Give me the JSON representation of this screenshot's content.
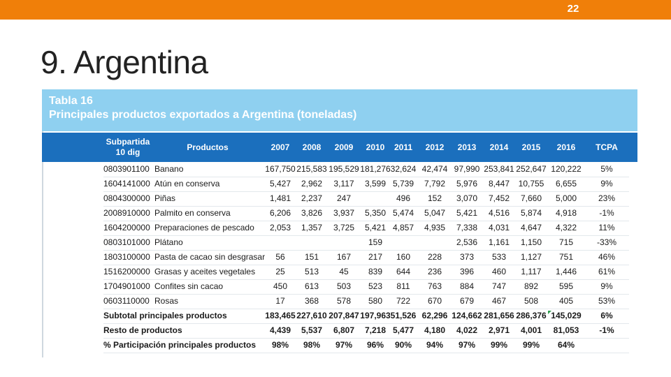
{
  "slide": {
    "page_number": "22",
    "title": "9. Argentina"
  },
  "table": {
    "label": "Tabla 16",
    "title": "Principales productos exportados a Argentina (toneladas)",
    "headers": {
      "subpartida_line1": "Subpartida",
      "subpartida_line2": "10 dig",
      "productos": "Productos",
      "years": [
        "2007",
        "2008",
        "2009",
        "2010",
        "2011",
        "2012",
        "2013",
        "2014",
        "2015",
        "2016"
      ],
      "tcpa": "TCPA"
    },
    "rows": [
      {
        "code": "0803901100",
        "product": "Banano",
        "values": [
          "167,750",
          "215,583",
          "195,529",
          "181,276",
          "32,624",
          "42,474",
          "97,990",
          "253,841",
          "252,647",
          "120,222"
        ],
        "tcpa": "5%"
      },
      {
        "code": "1604141000",
        "product": "Atún en conserva",
        "values": [
          "5,427",
          "2,962",
          "3,117",
          "3,599",
          "5,739",
          "7,792",
          "5,976",
          "8,447",
          "10,755",
          "6,655"
        ],
        "tcpa": "9%"
      },
      {
        "code": "0804300000",
        "product": "Piñas",
        "values": [
          "1,481",
          "2,237",
          "247",
          "",
          "496",
          "152",
          "3,070",
          "7,452",
          "7,660",
          "5,000"
        ],
        "tcpa": "23%"
      },
      {
        "code": "2008910000",
        "product": "Palmito en conserva",
        "values": [
          "6,206",
          "3,826",
          "3,937",
          "5,350",
          "5,474",
          "5,047",
          "5,421",
          "4,516",
          "5,874",
          "4,918"
        ],
        "tcpa": "-1%"
      },
      {
        "code": "1604200000",
        "product": "Preparaciones de pescado",
        "values": [
          "2,053",
          "1,357",
          "3,725",
          "5,421",
          "4,857",
          "4,935",
          "7,338",
          "4,031",
          "4,647",
          "4,322"
        ],
        "tcpa": "11%"
      },
      {
        "code": "0803101000",
        "product": "Plátano",
        "values": [
          "",
          "",
          "",
          "159",
          "",
          "",
          "2,536",
          "1,161",
          "1,150",
          "715"
        ],
        "tcpa": "-33%"
      },
      {
        "code": "1803100000",
        "product": "Pasta de cacao sin desgrasar",
        "values": [
          "56",
          "151",
          "167",
          "217",
          "160",
          "228",
          "373",
          "533",
          "1,127",
          "751"
        ],
        "tcpa": "46%"
      },
      {
        "code": "1516200000",
        "product": "Grasas y aceites vegetales",
        "values": [
          "25",
          "513",
          "45",
          "839",
          "644",
          "236",
          "396",
          "460",
          "1,117",
          "1,446"
        ],
        "tcpa": "61%"
      },
      {
        "code": "1704901000",
        "product": "Confites sin cacao",
        "values": [
          "450",
          "613",
          "503",
          "523",
          "811",
          "763",
          "884",
          "747",
          "892",
          "595"
        ],
        "tcpa": "9%"
      },
      {
        "code": "0603110000",
        "product": "Rosas",
        "values": [
          "17",
          "368",
          "578",
          "580",
          "722",
          "670",
          "679",
          "467",
          "508",
          "405"
        ],
        "tcpa": "53%"
      }
    ],
    "summary_rows": [
      {
        "label": "Subtotal principales productos",
        "values": [
          "183,465",
          "227,610",
          "207,847",
          "197,963",
          "51,526",
          "62,296",
          "124,662",
          "281,656",
          "286,376",
          "145,029"
        ],
        "tcpa": "6%"
      },
      {
        "label": "Resto de productos",
        "values": [
          "4,439",
          "5,537",
          "6,807",
          "7,218",
          "5,477",
          "4,180",
          "4,022",
          "2,971",
          "4,001",
          "81,053"
        ],
        "tcpa": "-1%"
      },
      {
        "label": "% Participación principales productos",
        "values": [
          "98%",
          "98%",
          "97%",
          "96%",
          "90%",
          "94%",
          "97%",
          "99%",
          "99%",
          "64%"
        ],
        "tcpa": ""
      }
    ]
  },
  "colors": {
    "top_bar": "#f07f09",
    "panel_header": "#8fd0f0",
    "column_header": "#1b6fbd"
  },
  "icons": {
    "cell_marker": "green-corner-triangle-icon"
  }
}
